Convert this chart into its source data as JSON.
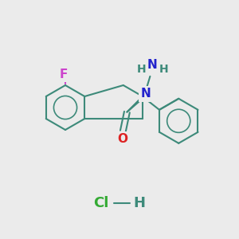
{
  "background_color": "#EBEBEB",
  "bond_color": "#3d8a7a",
  "bond_width": 1.5,
  "atom_colors": {
    "F": "#cc44cc",
    "N_ring": "#2222cc",
    "N_nh2": "#2222cc",
    "O": "#dd2222",
    "C_bond": "#3d8a7a",
    "Cl": "#33aa33",
    "H": "#3d8a7a"
  },
  "font_size_atoms": 11,
  "font_size_hcl": 12
}
